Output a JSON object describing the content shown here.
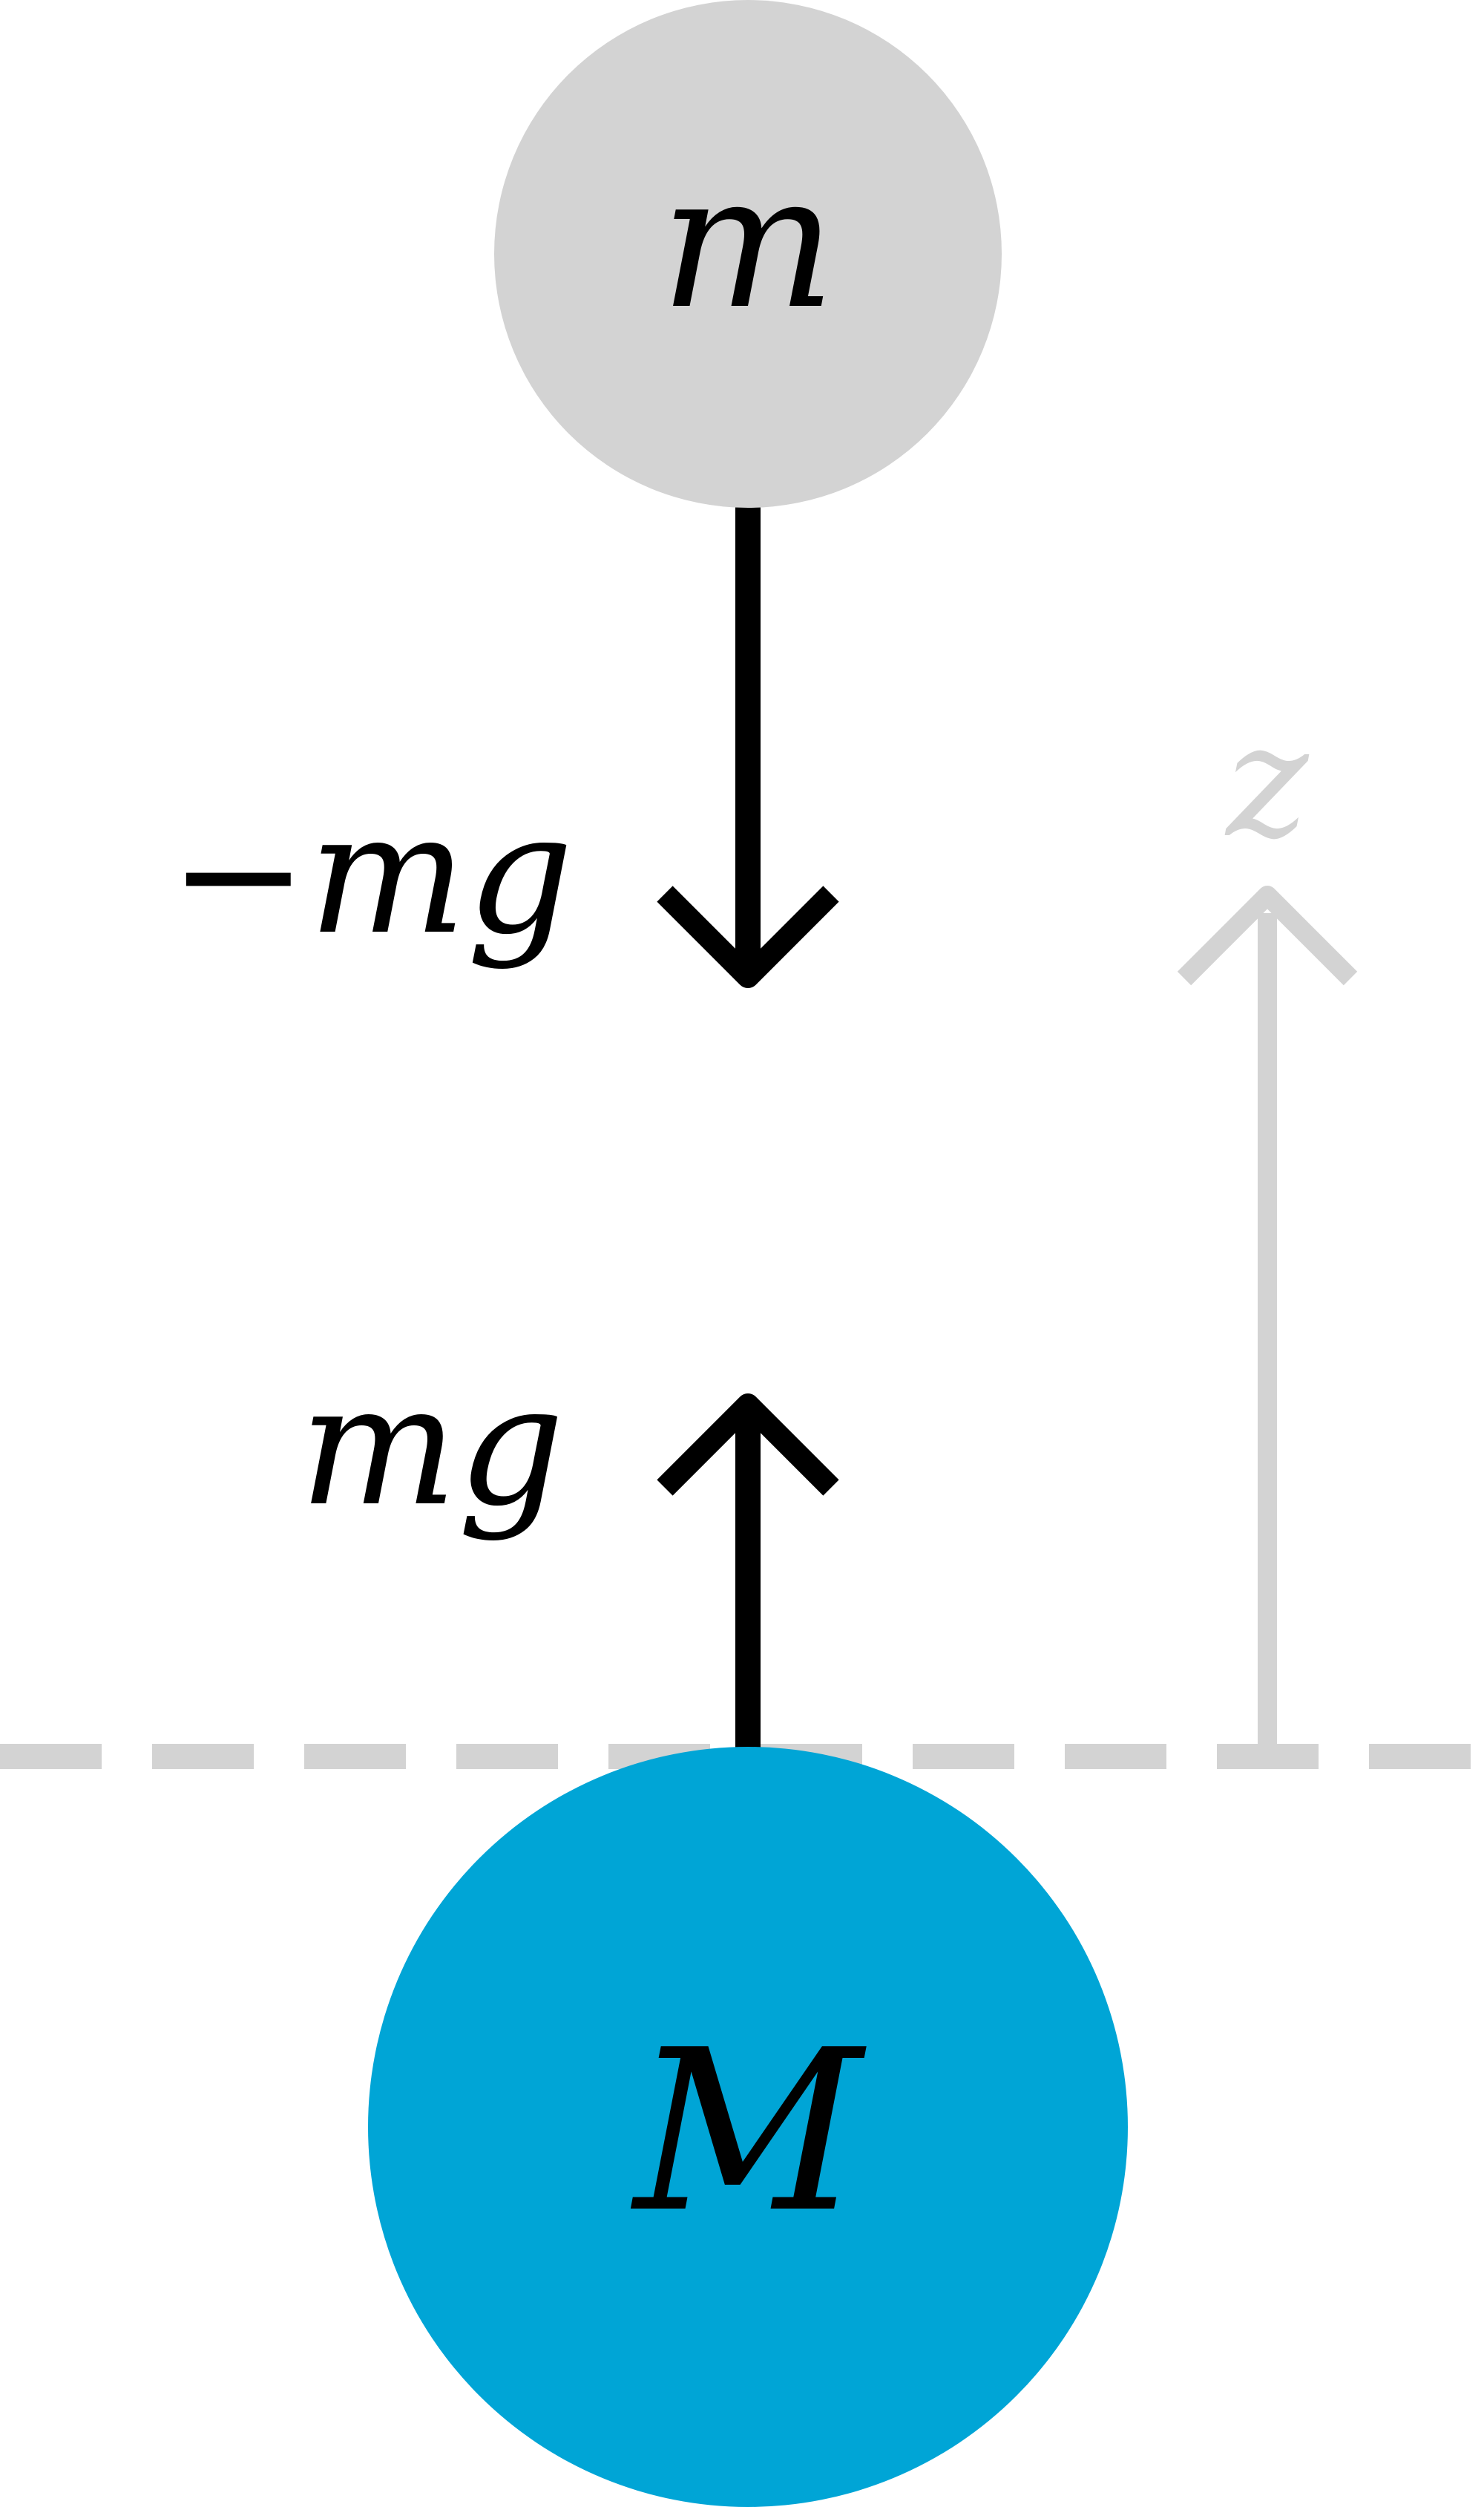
{
  "diagram": {
    "small_mass": {
      "label": "m",
      "fill": "#d3d3d3"
    },
    "large_mass": {
      "label": "M",
      "fill": "#00a5d6"
    },
    "force_down": {
      "label": "−mg",
      "color": "#000000"
    },
    "force_up": {
      "label": "mg",
      "color": "#000000"
    },
    "z_axis": {
      "label": "z",
      "color": "#d3d3d3"
    },
    "reference_line": {
      "style": "dashed",
      "color": "#d3d3d3"
    }
  }
}
